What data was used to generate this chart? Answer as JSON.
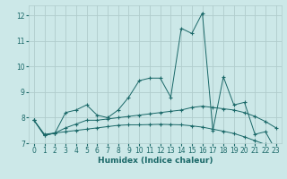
{
  "xlabel": "Humidex (Indice chaleur)",
  "background_color": "#cce8e8",
  "plot_bg_color": "#cce8e8",
  "grid_color": "#b0cccc",
  "line_color": "#1a6868",
  "x_values": [
    0,
    1,
    2,
    3,
    4,
    5,
    6,
    7,
    8,
    9,
    10,
    11,
    12,
    13,
    14,
    15,
    16,
    17,
    18,
    19,
    20,
    21,
    22,
    23
  ],
  "line1_y": [
    7.9,
    7.3,
    7.4,
    8.2,
    8.3,
    8.5,
    8.1,
    8.0,
    8.3,
    8.8,
    9.45,
    9.55,
    9.55,
    8.8,
    11.5,
    11.3,
    12.1,
    7.5,
    9.6,
    8.5,
    8.6,
    7.35,
    7.45,
    6.7
  ],
  "line2_y": [
    7.9,
    7.35,
    7.4,
    7.6,
    7.75,
    7.9,
    7.9,
    7.95,
    8.0,
    8.05,
    8.1,
    8.15,
    8.2,
    8.25,
    8.3,
    8.4,
    8.45,
    8.4,
    8.35,
    8.3,
    8.2,
    8.05,
    7.85,
    7.6
  ],
  "line3_y": [
    7.9,
    7.3,
    7.4,
    7.45,
    7.5,
    7.55,
    7.6,
    7.65,
    7.7,
    7.72,
    7.72,
    7.73,
    7.74,
    7.73,
    7.72,
    7.68,
    7.63,
    7.55,
    7.47,
    7.38,
    7.25,
    7.1,
    6.95,
    6.7
  ],
  "ylim": [
    7.0,
    12.4
  ],
  "xlim": [
    -0.5,
    23.5
  ],
  "yticks": [
    7,
    8,
    9,
    10,
    11,
    12
  ],
  "xticks": [
    0,
    1,
    2,
    3,
    4,
    5,
    6,
    7,
    8,
    9,
    10,
    11,
    12,
    13,
    14,
    15,
    16,
    17,
    18,
    19,
    20,
    21,
    22,
    23
  ],
  "tick_fontsize": 5.5,
  "xlabel_fontsize": 6.5
}
